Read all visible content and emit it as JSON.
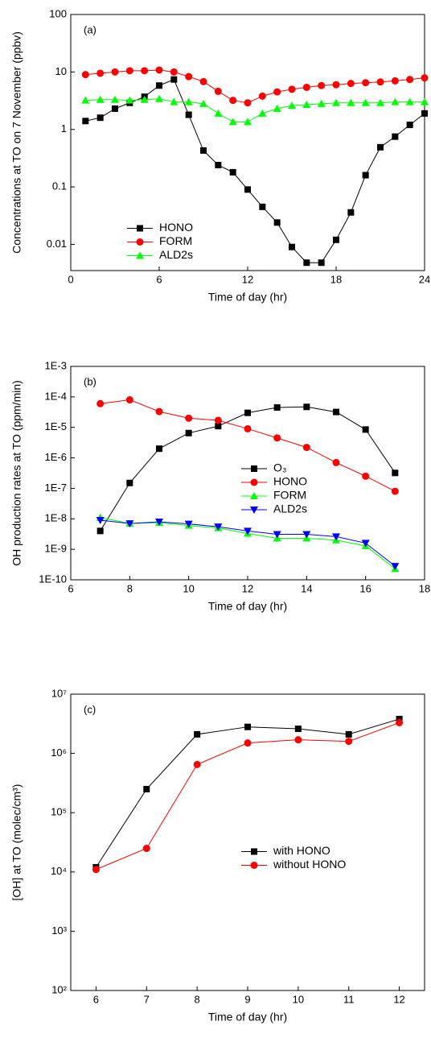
{
  "chart_data": [
    {
      "type": "line",
      "annotation": "(a)",
      "xlabel": "Time of day (hr)",
      "ylabel": "Concentrations at TO on 7 November (ppbv)",
      "ylog": true,
      "legend": "lower left",
      "x": [
        1,
        2,
        3,
        4,
        5,
        6,
        7,
        8,
        9,
        10,
        11,
        12,
        13,
        14,
        15,
        16,
        17,
        18,
        19,
        20,
        21,
        22,
        23,
        24
      ],
      "xlim": [
        0,
        24
      ],
      "xticks": [
        0,
        6,
        12,
        18,
        24
      ],
      "ylim": [
        0.0035,
        100
      ],
      "yticks": [
        0.01,
        0.1,
        1,
        10,
        100
      ],
      "series": [
        {
          "name": "HONO",
          "color": "#000000",
          "marker": "square",
          "values": [
            1.4,
            1.6,
            2.3,
            2.9,
            3.7,
            5.8,
            7.4,
            1.8,
            0.43,
            0.24,
            0.18,
            0.09,
            0.045,
            0.024,
            0.009,
            0.0048,
            0.0048,
            0.012,
            0.036,
            0.16,
            0.49,
            0.75,
            1.2,
            1.9
          ]
        },
        {
          "name": "FORM",
          "color": "#ff0000",
          "marker": "circle",
          "values": [
            9,
            9.5,
            10,
            10.5,
            10.5,
            10.8,
            10,
            8.3,
            6.8,
            4.6,
            3.2,
            2.9,
            3.8,
            4.5,
            5,
            5.4,
            5.8,
            6,
            6.3,
            6.5,
            6.7,
            7,
            7.4,
            7.9
          ]
        },
        {
          "name": "ALD2s",
          "color": "#00ff00",
          "marker": "triangle-up",
          "values": [
            3.2,
            3.3,
            3.3,
            3.2,
            3.3,
            3.4,
            3,
            3,
            2.8,
            1.9,
            1.35,
            1.35,
            1.9,
            2.3,
            2.6,
            2.7,
            2.8,
            2.9,
            2.9,
            2.9,
            2.9,
            3,
            3,
            3
          ]
        }
      ]
    },
    {
      "type": "line",
      "annotation": "(b)",
      "xlabel": "Time of day (hr)",
      "ylabel": "OH production rates at TO (ppm/min)",
      "ylog": true,
      "legend": "center right",
      "x": [
        7,
        8,
        9,
        10,
        11,
        12,
        13,
        14,
        15,
        16,
        17
      ],
      "xlim": [
        6,
        18
      ],
      "xticks": [
        6,
        8,
        10,
        12,
        14,
        16,
        18
      ],
      "ylim": [
        1e-10,
        0.001
      ],
      "yticks": [
        {
          "value": 1e-10,
          "label": "1E-10"
        },
        {
          "value": 1e-09,
          "label": "1E-9"
        },
        {
          "value": 1e-08,
          "label": "1E-8"
        },
        {
          "value": 1e-07,
          "label": "1E-7"
        },
        {
          "value": 1e-06,
          "label": "1E-6"
        },
        {
          "value": 1e-05,
          "label": "1E-5"
        },
        {
          "value": 0.0001,
          "label": "1E-4"
        },
        {
          "value": 0.001,
          "label": "1E-3"
        }
      ],
      "series": [
        {
          "name": "O₃",
          "color": "#000000",
          "marker": "square",
          "values": [
            4e-09,
            1.5e-07,
            2e-06,
            6.5e-06,
            1.1e-05,
            3e-05,
            4.5e-05,
            4.7e-05,
            3.2e-05,
            8.5e-06,
            3.2e-07
          ]
        },
        {
          "name": "HONO",
          "color": "#ff0000",
          "marker": "circle",
          "values": [
            6e-05,
            8e-05,
            3.3e-05,
            2e-05,
            1.7e-05,
            9e-06,
            4.5e-06,
            2.2e-06,
            7e-07,
            2.5e-07,
            8e-08
          ]
        },
        {
          "name": "FORM",
          "color": "#00ff00",
          "marker": "triangle-up",
          "values": [
            1.1e-08,
            7e-09,
            7.5e-09,
            6e-09,
            5e-09,
            3.3e-09,
            2.3e-09,
            2.3e-09,
            2e-09,
            1.3e-09,
            2.3e-10
          ]
        },
        {
          "name": "ALD2s",
          "color": "#0000ff",
          "marker": "triangle-down",
          "values": [
            9e-09,
            7e-09,
            8e-09,
            6.8e-09,
            5.5e-09,
            4e-09,
            3.1e-09,
            3.1e-09,
            2.6e-09,
            1.6e-09,
            2.8e-10
          ]
        }
      ]
    },
    {
      "type": "line",
      "annotation": "(c)",
      "xlabel": "Time of day (hr)",
      "ylabel": "[OH] at TO (molec/cm³)",
      "ylog": true,
      "legend": "center right",
      "x": [
        6,
        7,
        8,
        9,
        10,
        11,
        12
      ],
      "xlim": [
        5.5,
        12.5
      ],
      "xticks": [
        6,
        7,
        8,
        9,
        10,
        11,
        12
      ],
      "ylim": [
        100,
        10000000
      ],
      "yticks": [
        {
          "value": 100,
          "label": "10²"
        },
        {
          "value": 1000,
          "label": "10³"
        },
        {
          "value": 10000,
          "label": "10⁴"
        },
        {
          "value": 100000,
          "label": "10⁵"
        },
        {
          "value": 1000000,
          "label": "10⁶"
        },
        {
          "value": 10000000,
          "label": "10⁷"
        }
      ],
      "series": [
        {
          "name": "with HONO",
          "color": "#000000",
          "marker": "square",
          "values": [
            12000,
            250000,
            2100000,
            2800000,
            2600000,
            2100000,
            3800000
          ]
        },
        {
          "name": "without HONO",
          "color": "#ff0000",
          "marker": "circle",
          "values": [
            11000,
            25000,
            650000,
            1500000,
            1700000,
            1600000,
            3300000
          ]
        }
      ]
    }
  ]
}
